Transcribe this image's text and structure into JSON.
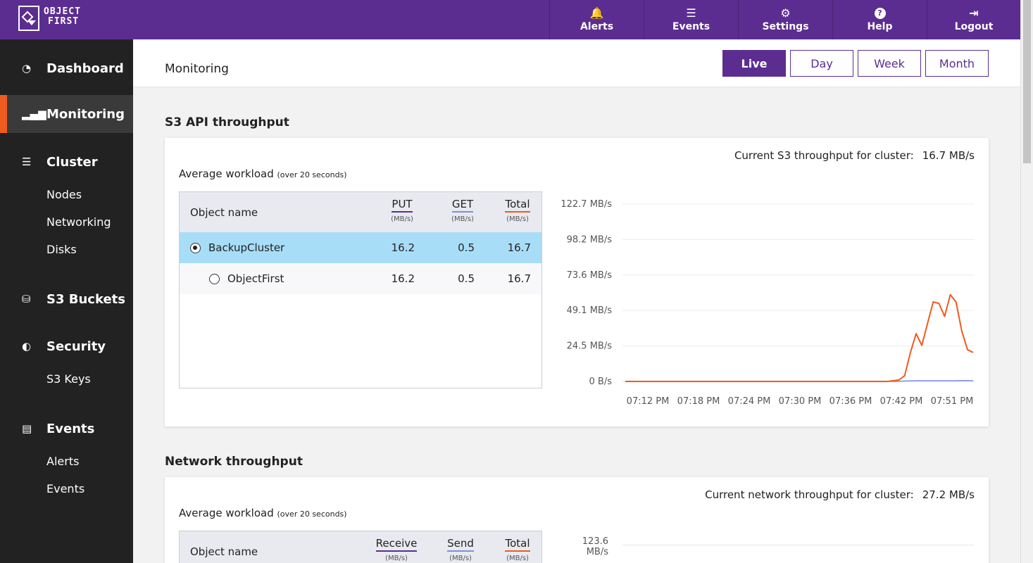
{
  "logo": {
    "line1": "OBJECT",
    "line2": "FIRST"
  },
  "nav": [
    {
      "icon": "bell-icon",
      "glyph": "🔔",
      "label": "Alerts"
    },
    {
      "icon": "list-icon",
      "glyph": "☰",
      "label": "Events"
    },
    {
      "icon": "gear-icon",
      "glyph": "⚙",
      "label": "Settings"
    },
    {
      "icon": "help-icon",
      "glyph": "?",
      "label": "Help"
    },
    {
      "icon": "logout-icon",
      "glyph": "⇥",
      "label": "Logout"
    }
  ],
  "sidebar": {
    "dashboard": "Dashboard",
    "monitoring": "Monitoring",
    "cluster": "Cluster",
    "cluster_items": [
      "Nodes",
      "Networking",
      "Disks"
    ],
    "s3buckets": "S3 Buckets",
    "security": "Security",
    "security_items": [
      "S3 Keys"
    ],
    "events": "Events",
    "events_items": [
      "Alerts",
      "Events"
    ]
  },
  "header": {
    "title": "Monitoring",
    "ranges": [
      "Live",
      "Day",
      "Week",
      "Month"
    ],
    "active_range": "Live"
  },
  "s3": {
    "title": "S3 API throughput",
    "current_label": "Current S3 throughput for cluster:",
    "current_value": "16.7 MB/s",
    "avg_label": "Average workload",
    "avg_note": "(over 20 seconds)",
    "columns": {
      "name": "Object name",
      "c1": "PUT",
      "c2": "GET",
      "c3": "Total",
      "unit": "(MB/s)"
    },
    "rows": [
      {
        "name": "BackupCluster",
        "c1": "16.2",
        "c2": "0.5",
        "c3": "16.7",
        "selected": true
      },
      {
        "name": "ObjectFirst",
        "c1": "16.2",
        "c2": "0.5",
        "c3": "16.7",
        "selected": false
      }
    ]
  },
  "net": {
    "title": "Network throughput",
    "current_label": "Current network throughput for cluster:",
    "current_value": "27.2 MB/s",
    "avg_label": "Average workload",
    "avg_note": "(over 20 seconds)",
    "columns": {
      "name": "Object name",
      "c1": "Receive",
      "c2": "Send",
      "c3": "Total",
      "unit": "(MB/s)"
    },
    "y_top_label": "123.6 MB/s"
  },
  "colors": {
    "accent": "#5c2d91",
    "total": "#f05a1f",
    "get": "#7b8fe0",
    "put": "#5c2d91"
  },
  "chart_data": {
    "type": "line",
    "ylabels": [
      "122.7 MB/s",
      "98.2 MB/s",
      "73.6 MB/s",
      "49.1 MB/s",
      "24.5 MB/s",
      "0 B/s"
    ],
    "yticks": [
      122.7,
      98.2,
      73.6,
      49.1,
      24.5,
      0
    ],
    "ylim": [
      0,
      122.7
    ],
    "xlabels": [
      "07:12 PM",
      "07:18 PM",
      "07:24 PM",
      "07:30 PM",
      "07:36 PM",
      "07:42 PM",
      "07:51 PM"
    ],
    "grid": true,
    "series": [
      {
        "color": "#f05a1f",
        "values": [
          0,
          0,
          0,
          0,
          0,
          0,
          0,
          0,
          0,
          0,
          0,
          0,
          0,
          0,
          0,
          0,
          0,
          0,
          0,
          0,
          0,
          0,
          0,
          0,
          0,
          0,
          0,
          0,
          0,
          0,
          0,
          0,
          0,
          0,
          0,
          0,
          0,
          0,
          0,
          0,
          0,
          0,
          0,
          0,
          0,
          0,
          0,
          0.5,
          1,
          4,
          20,
          33,
          25,
          40,
          55,
          54,
          45,
          60,
          55,
          35,
          22,
          20
        ]
      },
      {
        "color": "#7b8fe0",
        "values": [
          0,
          0,
          0,
          0,
          0,
          0,
          0,
          0,
          0,
          0,
          0,
          0,
          0,
          0,
          0,
          0,
          0,
          0,
          0,
          0,
          0,
          0,
          0,
          0,
          0,
          0,
          0,
          0,
          0,
          0,
          0,
          0,
          0,
          0,
          0,
          0,
          0,
          0,
          0,
          0,
          0,
          0,
          0,
          0,
          0,
          0,
          0,
          0,
          0,
          0.3,
          0.4,
          0.5,
          0.5,
          0.5,
          0.5,
          0.5,
          0.5,
          0.5,
          0.5,
          0.6,
          0.6,
          0.5
        ]
      }
    ]
  }
}
